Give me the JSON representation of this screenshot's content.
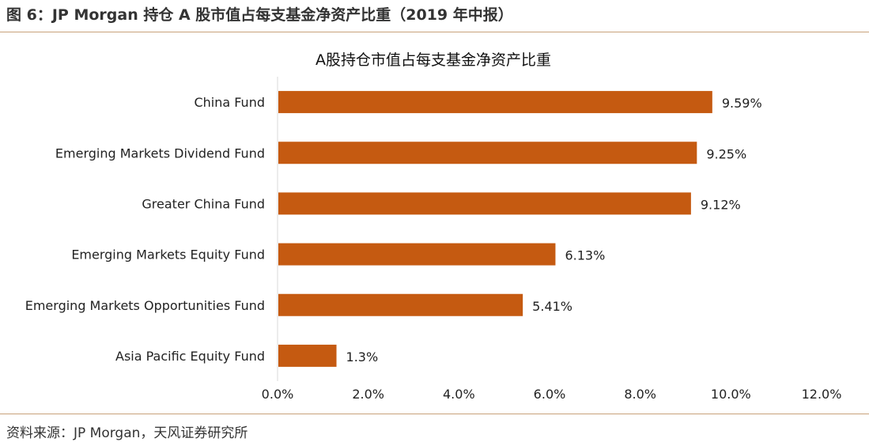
{
  "figure": {
    "title": "图 6：JP Morgan 持仓 A 股市值占每支基金净资产比重（2019 年中报）",
    "source": "资料来源：JP Morgan，天风证券研究所"
  },
  "colors": {
    "bar": "#c55a11",
    "rule": "#c8a27a",
    "axis": "#d9d9d9"
  },
  "chart_data": {
    "type": "bar",
    "orientation": "horizontal",
    "title": "A股持仓市值占每支基金净资产比重",
    "categories": [
      "China Fund",
      "Emerging Markets Dividend Fund",
      "Greater China Fund",
      "Emerging Markets Equity Fund",
      "Emerging Markets Opportunities Fund",
      "Asia Pacific Equity Fund"
    ],
    "values": [
      9.59,
      9.25,
      9.12,
      6.13,
      5.41,
      1.3
    ],
    "data_labels": [
      "9.59%",
      "9.25%",
      "9.12%",
      "6.13%",
      "5.41%",
      "1.3%"
    ],
    "xlim": [
      0,
      12
    ],
    "xticks": [
      0,
      2,
      4,
      6,
      8,
      10,
      12
    ],
    "xtick_labels": [
      "0.0%",
      "2.0%",
      "4.0%",
      "6.0%",
      "8.0%",
      "10.0%",
      "12.0%"
    ],
    "grid": false,
    "legend": "none"
  }
}
